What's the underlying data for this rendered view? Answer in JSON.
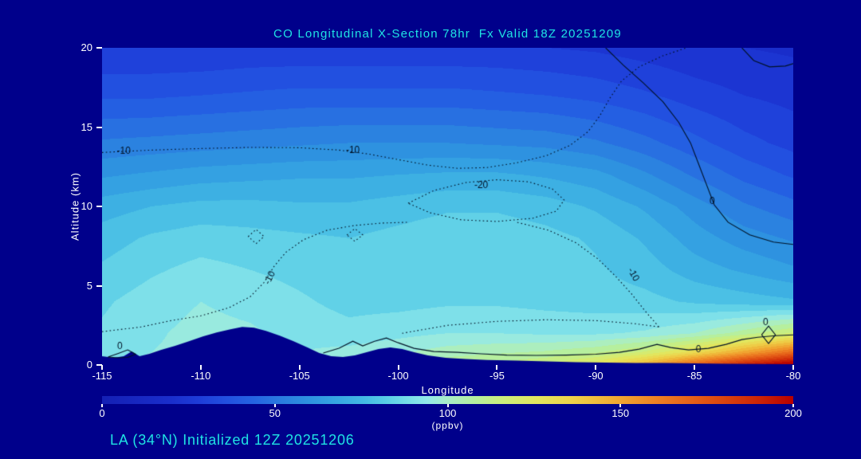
{
  "colors": {
    "background": "#00008B",
    "terrain": "#00008B",
    "title_text": "#1FE3E3",
    "footer_text": "#1FE3E3",
    "axis_text": "#FFFFFF",
    "contour_line": "#001226"
  },
  "chart_data": {
    "type": "heatmap",
    "title": "CO Longitudinal X-Section 78hr  Fx Valid 18Z 20251209",
    "xlabel": "Longitude",
    "ylabel": "Altitude (km)",
    "annotation": "LA (34°N) Initialized 12Z 20251206",
    "xlim": [
      -115,
      -80
    ],
    "ylim": [
      0,
      20
    ],
    "xticks": [
      -115,
      -110,
      -105,
      -100,
      -95,
      -90,
      -85,
      -80
    ],
    "yticks": [
      0,
      5,
      10,
      15,
      20
    ],
    "units": "ppbv",
    "colorbar": {
      "label": "(ppbv)",
      "min": 0,
      "max": 200,
      "ticks": [
        0,
        50,
        100,
        150,
        200
      ]
    },
    "band_step_ppbv": 6,
    "colormap_stops": [
      [
        0,
        "#1420B4"
      ],
      [
        20,
        "#1A2ECC"
      ],
      [
        28,
        "#1E3CD8"
      ],
      [
        36,
        "#2250E0"
      ],
      [
        44,
        "#2564E2"
      ],
      [
        52,
        "#2A7CE0"
      ],
      [
        60,
        "#2E92E0"
      ],
      [
        68,
        "#36A6E2"
      ],
      [
        76,
        "#44BAE4"
      ],
      [
        82,
        "#58CCE6"
      ],
      [
        88,
        "#74DCE8"
      ],
      [
        94,
        "#92E8EA"
      ],
      [
        100,
        "#A8EEC8"
      ],
      [
        108,
        "#B6EF9E"
      ],
      [
        116,
        "#CCEE7C"
      ],
      [
        126,
        "#E2E65E"
      ],
      [
        136,
        "#EED24A"
      ],
      [
        148,
        "#F0AC34"
      ],
      [
        160,
        "#EE8224"
      ],
      [
        175,
        "#E05214"
      ],
      [
        190,
        "#CC2406"
      ],
      [
        200,
        "#B80000"
      ]
    ],
    "grid_lon": [
      -115,
      -112.5,
      -110,
      -107.5,
      -105,
      -102.5,
      -100,
      -97.5,
      -95,
      -92.5,
      -90,
      -87.5,
      -85,
      -82.5,
      -80
    ],
    "grid_alt_km": [
      0,
      0.8,
      2,
      4,
      6,
      8,
      10,
      12,
      14,
      17,
      20
    ],
    "values_ppbv": [
      [
        92,
        95,
        98,
        98,
        96,
        100,
        105,
        110,
        113,
        118,
        128,
        148,
        172,
        192,
        207
      ],
      [
        90,
        93,
        95,
        95,
        93,
        95,
        98,
        102,
        104,
        106,
        110,
        118,
        132,
        150,
        168
      ],
      [
        88,
        92,
        95,
        94,
        91,
        89,
        91,
        93,
        93,
        92,
        92,
        94,
        99,
        108,
        118
      ],
      [
        86,
        90,
        93,
        91,
        88,
        85,
        85,
        86,
        86,
        85,
        84,
        83,
        80,
        78,
        76
      ],
      [
        82,
        86,
        89,
        87,
        85,
        83,
        84,
        86,
        86,
        85,
        82,
        78,
        72,
        68,
        64
      ],
      [
        78,
        82,
        84,
        83,
        82,
        81,
        83,
        85,
        85,
        83,
        80,
        74,
        66,
        60,
        56
      ],
      [
        72,
        75,
        77,
        77,
        76,
        76,
        78,
        80,
        80,
        78,
        74,
        68,
        60,
        52,
        47
      ],
      [
        62,
        64,
        66,
        67,
        68,
        68,
        69,
        70,
        70,
        68,
        65,
        58,
        50,
        43,
        38
      ],
      [
        52,
        53,
        54,
        55,
        56,
        57,
        57,
        57,
        56,
        55,
        52,
        47,
        41,
        35,
        31
      ],
      [
        38,
        38,
        39,
        40,
        41,
        41,
        41,
        41,
        40,
        39,
        37,
        34,
        30,
        27,
        25
      ],
      [
        27,
        27,
        27,
        28,
        28,
        28,
        28,
        28,
        28,
        27,
        26,
        24,
        22,
        21,
        20
      ]
    ],
    "terrain_km": [
      [
        -115,
        0
      ],
      [
        -115,
        0.55
      ],
      [
        -114.4,
        0.45
      ],
      [
        -113.9,
        0.55
      ],
      [
        -113.5,
        0.85
      ],
      [
        -113.1,
        0.55
      ],
      [
        -112.6,
        0.7
      ],
      [
        -112,
        0.95
      ],
      [
        -111.3,
        1.2
      ],
      [
        -110.6,
        1.5
      ],
      [
        -109.9,
        1.8
      ],
      [
        -109.2,
        2.05
      ],
      [
        -108.5,
        2.25
      ],
      [
        -107.9,
        2.4
      ],
      [
        -107.3,
        2.35
      ],
      [
        -106.7,
        2.15
      ],
      [
        -106,
        1.85
      ],
      [
        -105.3,
        1.5
      ],
      [
        -104.6,
        1.1
      ],
      [
        -104,
        0.75
      ],
      [
        -103.4,
        0.55
      ],
      [
        -102.8,
        0.5
      ],
      [
        -102.2,
        0.6
      ],
      [
        -101.6,
        0.8
      ],
      [
        -101,
        1
      ],
      [
        -100.4,
        1.1
      ],
      [
        -99.8,
        1
      ],
      [
        -99.2,
        0.8
      ],
      [
        -98.5,
        0.6
      ],
      [
        -97.6,
        0.45
      ],
      [
        -96.6,
        0.38
      ],
      [
        -95.5,
        0.32
      ],
      [
        -94,
        0.28
      ],
      [
        -92.5,
        0.22
      ],
      [
        -91,
        0.18
      ],
      [
        -89.5,
        0.15
      ],
      [
        -88,
        0.12
      ],
      [
        -86.5,
        0.12
      ],
      [
        -85,
        0.1
      ],
      [
        -83.5,
        0.08
      ],
      [
        -82,
        0.06
      ],
      [
        -80.5,
        0.05
      ],
      [
        -80,
        0.05
      ],
      [
        -80,
        0
      ]
    ],
    "contours": [
      {
        "label": "-10",
        "style": "dotted",
        "points": [
          [
            -115,
            13.4
          ],
          [
            -112.5,
            13.55
          ],
          [
            -110,
            13.65
          ],
          [
            -107.5,
            13.72
          ],
          [
            -105,
            13.7
          ],
          [
            -103,
            13.55
          ],
          [
            -101.5,
            13.3
          ],
          [
            -100,
            12.95
          ],
          [
            -98.5,
            12.6
          ],
          [
            -97,
            12.4
          ],
          [
            -95.5,
            12.45
          ],
          [
            -94,
            12.75
          ],
          [
            -92.5,
            13.2
          ],
          [
            -91.3,
            13.85
          ],
          [
            -90.4,
            14.7
          ],
          [
            -89.8,
            15.7
          ],
          [
            -89.3,
            16.8
          ],
          [
            -88.7,
            17.9
          ],
          [
            -87.8,
            18.8
          ],
          [
            -86.6,
            19.5
          ],
          [
            -85.4,
            20
          ]
        ]
      },
      {
        "label": "-20",
        "style": "dotted",
        "points": [
          [
            -99.5,
            10.2
          ],
          [
            -98.2,
            11
          ],
          [
            -96.6,
            11.5
          ],
          [
            -95,
            11.68
          ],
          [
            -93.4,
            11.55
          ],
          [
            -92.2,
            11.1
          ],
          [
            -91.6,
            10.4
          ],
          [
            -92,
            9.7
          ],
          [
            -93.2,
            9.25
          ],
          [
            -95,
            9.05
          ],
          [
            -96.8,
            9.15
          ],
          [
            -98.4,
            9.6
          ],
          [
            -99.5,
            10.2
          ]
        ]
      },
      {
        "label": "-10",
        "style": "dotted",
        "points": [
          [
            -115,
            2.1
          ],
          [
            -113,
            2.4
          ],
          [
            -111.5,
            2.8
          ],
          [
            -110,
            3.1
          ],
          [
            -108.6,
            3.6
          ],
          [
            -107.5,
            4.3
          ],
          [
            -106.8,
            5.2
          ],
          [
            -106.3,
            6.2
          ],
          [
            -105.7,
            7.1
          ],
          [
            -104.8,
            7.9
          ],
          [
            -103.6,
            8.5
          ],
          [
            -102.2,
            8.8
          ],
          [
            -100.8,
            8.95
          ],
          [
            -99.5,
            9
          ]
        ]
      },
      {
        "label": "-10",
        "style": "dotted",
        "points": [
          [
            -86.8,
            2.4
          ],
          [
            -87.5,
            3.4
          ],
          [
            -88.2,
            4.5
          ],
          [
            -89,
            5.6
          ],
          [
            -89.9,
            6.7
          ],
          [
            -91,
            7.7
          ],
          [
            -92.4,
            8.5
          ],
          [
            -94,
            9
          ]
        ]
      },
      {
        "label": "-10",
        "style": "dotted",
        "points": [
          [
            -99.8,
            2
          ],
          [
            -97.5,
            2.5
          ],
          [
            -95,
            2.75
          ],
          [
            -92.5,
            2.85
          ],
          [
            -90,
            2.8
          ],
          [
            -88,
            2.6
          ],
          [
            -86.8,
            2.4
          ]
        ]
      },
      {
        "label": "",
        "style": "dotted",
        "points": [
          [
            -107.6,
            8.1
          ],
          [
            -107.2,
            8.55
          ],
          [
            -106.8,
            8.1
          ],
          [
            -107.2,
            7.65
          ],
          [
            -107.6,
            8.1
          ]
        ]
      },
      {
        "label": "",
        "style": "dotted",
        "points": [
          [
            -102.6,
            8.2
          ],
          [
            -102.2,
            8.6
          ],
          [
            -101.8,
            8.2
          ],
          [
            -102.2,
            7.8
          ],
          [
            -102.6,
            8.2
          ]
        ]
      },
      {
        "label": "0",
        "style": "solid",
        "points": [
          [
            -89.5,
            20
          ],
          [
            -88.6,
            18.9
          ],
          [
            -87.6,
            17.8
          ],
          [
            -86.6,
            16.6
          ],
          [
            -85.8,
            15.3
          ],
          [
            -85.2,
            14
          ],
          [
            -84.8,
            12.7
          ],
          [
            -84.4,
            11.4
          ],
          [
            -84,
            10.1
          ],
          [
            -83.3,
            9
          ],
          [
            -82.2,
            8.2
          ],
          [
            -81,
            7.75
          ],
          [
            -80,
            7.6
          ]
        ]
      },
      {
        "label": "",
        "style": "solid",
        "points": [
          [
            -82.6,
            20
          ],
          [
            -82,
            19.2
          ],
          [
            -81.2,
            18.8
          ],
          [
            -80.4,
            18.85
          ],
          [
            -80,
            19
          ]
        ]
      },
      {
        "label": "0",
        "style": "solid",
        "points": [
          [
            -103.8,
            0.75
          ],
          [
            -103,
            1.05
          ],
          [
            -102.3,
            1.5
          ],
          [
            -101.8,
            1.2
          ],
          [
            -101.2,
            1.5
          ],
          [
            -100.6,
            1.7
          ],
          [
            -100,
            1.4
          ],
          [
            -99.2,
            1.05
          ],
          [
            -98.2,
            0.85
          ],
          [
            -97,
            0.8
          ],
          [
            -95.8,
            0.7
          ],
          [
            -94.5,
            0.62
          ],
          [
            -93,
            0.6
          ],
          [
            -91.5,
            0.62
          ],
          [
            -90,
            0.68
          ],
          [
            -88.8,
            0.8
          ],
          [
            -87.8,
            1
          ],
          [
            -86.9,
            1.3
          ],
          [
            -86.2,
            1.1
          ],
          [
            -85.3,
            0.95
          ],
          [
            -84.3,
            1.05
          ],
          [
            -83.4,
            1.3
          ],
          [
            -82.6,
            1.6
          ],
          [
            -81.8,
            1.75
          ],
          [
            -80.9,
            1.85
          ],
          [
            -80,
            1.9
          ]
        ]
      },
      {
        "label": "0",
        "style": "solid",
        "points": [
          [
            -81.6,
            1.9
          ],
          [
            -81.25,
            2.45
          ],
          [
            -80.9,
            1.9
          ],
          [
            -81.25,
            1.35
          ],
          [
            -81.6,
            1.9
          ]
        ]
      },
      {
        "label": "0",
        "style": "solid",
        "points": [
          [
            -114.7,
            0.5
          ],
          [
            -114.2,
            0.72
          ],
          [
            -113.7,
            0.95
          ],
          [
            -113.3,
            0.68
          ],
          [
            -113.7,
            0.48
          ],
          [
            -114.2,
            0.45
          ],
          [
            -114.7,
            0.5
          ]
        ]
      }
    ],
    "contour_labels": [
      {
        "text": "-10",
        "lon": -113.9,
        "km": 13.5,
        "rot": 0
      },
      {
        "text": "-10",
        "lon": -102.3,
        "km": 13.55,
        "rot": 0
      },
      {
        "text": "-20",
        "lon": -95.8,
        "km": 11.3,
        "rot": 0
      },
      {
        "text": "-10",
        "lon": -106.5,
        "km": 5.5,
        "rot": -65
      },
      {
        "text": "-10",
        "lon": -88.1,
        "km": 5.7,
        "rot": 60
      },
      {
        "text": "0",
        "lon": -84.1,
        "km": 10.3,
        "rot": 0
      },
      {
        "text": "0",
        "lon": -114.1,
        "km": 1.15,
        "rot": 0
      },
      {
        "text": "0",
        "lon": -84.8,
        "km": 0.95,
        "rot": 0
      },
      {
        "text": "0",
        "lon": -81.4,
        "km": 2.7,
        "rot": 0
      }
    ]
  }
}
